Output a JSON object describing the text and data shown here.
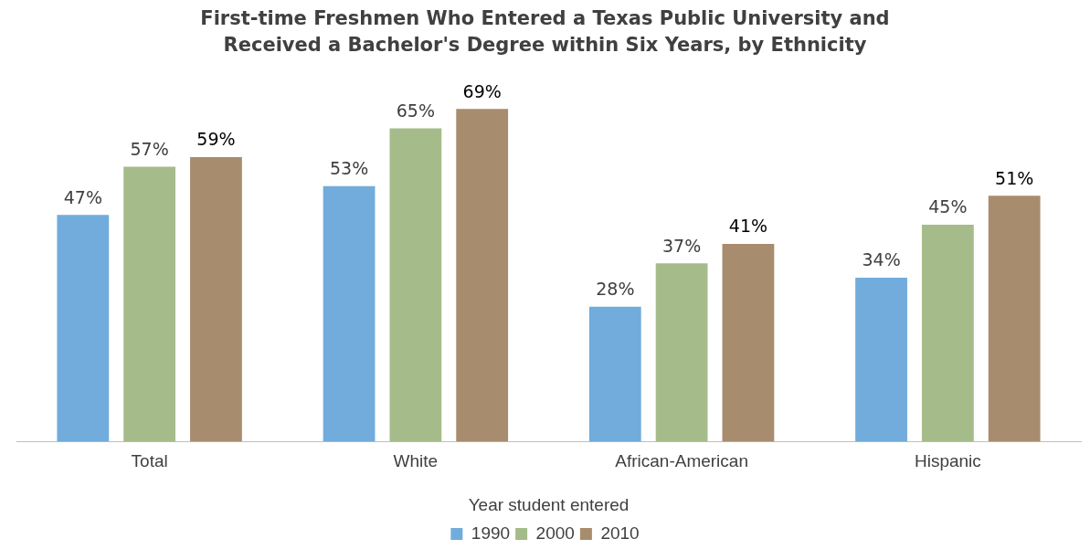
{
  "chart_data": {
    "type": "bar",
    "title": "First-time Freshmen Who Entered a Texas Public University and Received a Bachelor's Degree within Six Years, by Ethnicity",
    "xlabel": "Year student entered",
    "categories": [
      "Total",
      "White",
      "African-American",
      "Hispanic"
    ],
    "series": [
      {
        "name": "1990",
        "color": "#71acdc",
        "values": [
          47,
          53,
          28,
          34
        ],
        "value_labels": [
          "47%",
          "53%",
          "28%",
          "34%"
        ]
      },
      {
        "name": "2000",
        "color": "#a5bc8a",
        "values": [
          57,
          65,
          37,
          45
        ],
        "value_labels": [
          "57%",
          "65%",
          "37%",
          "45%"
        ]
      },
      {
        "name": "2010",
        "color": "#a88c6e",
        "values": [
          59,
          69,
          41,
          51
        ],
        "value_labels": [
          "59%",
          "69%",
          "41%",
          "51%"
        ]
      }
    ],
    "legend": "bottom",
    "grid": false,
    "tick_labels": "x"
  }
}
